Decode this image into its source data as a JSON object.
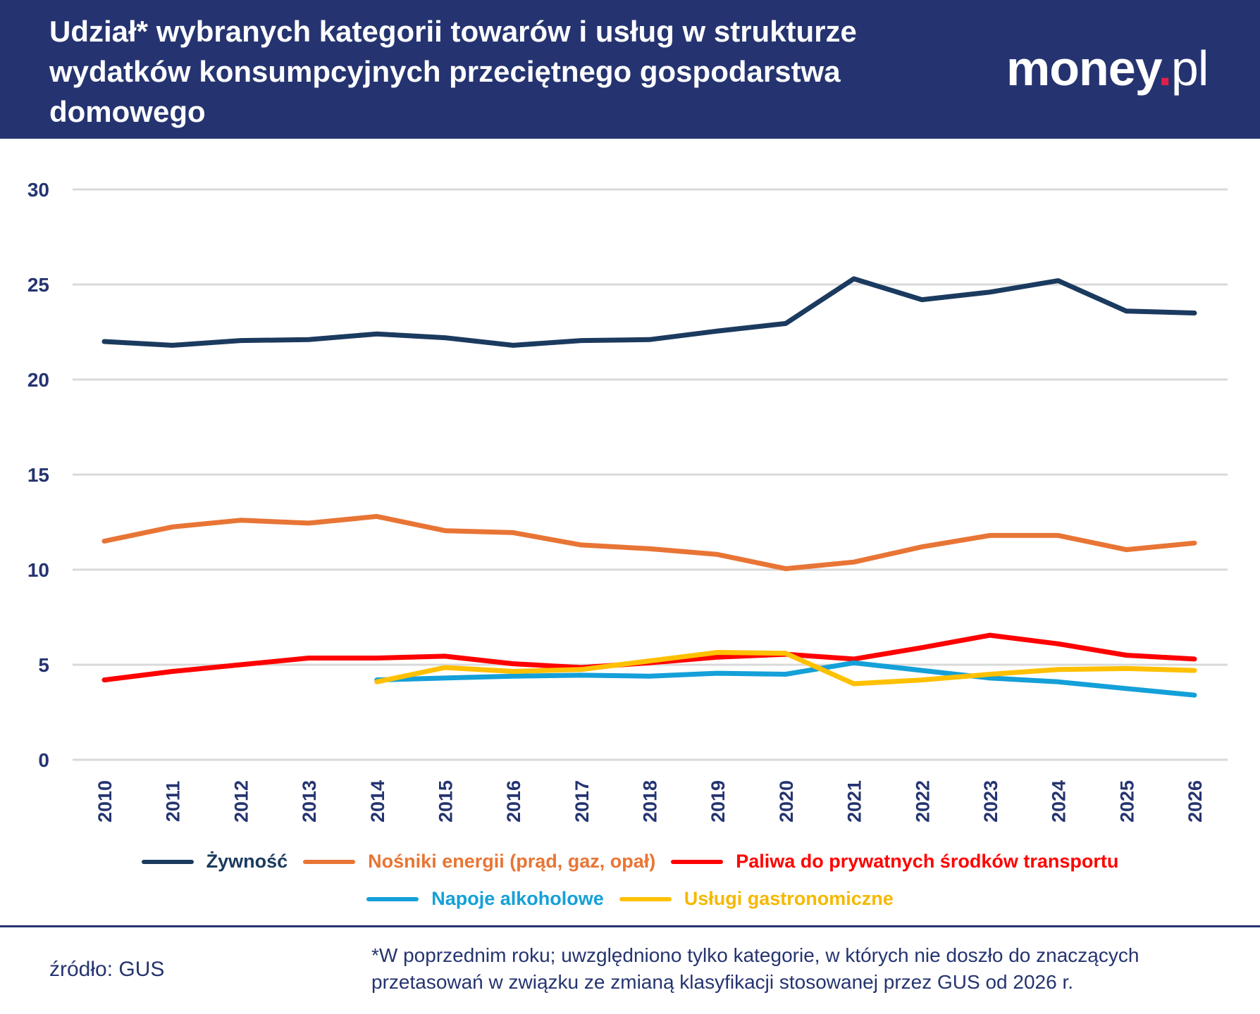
{
  "header": {
    "title": "Udział* wybranych kategorii towarów i usług w strukturze wydatków konsumpcyjnych przeciętnego gospodarstwa domowego",
    "logo": {
      "main": "money",
      "dot": ".",
      "suffix": "pl"
    }
  },
  "chart_data": {
    "type": "line",
    "title": "Udział* wybranych kategorii towarów i usług w strukturze wydatków konsumpcyjnych przeciętnego gospodarstwa domowego",
    "xlabel": "",
    "ylabel": "",
    "ylim": [
      0,
      30
    ],
    "yticks": [
      "0",
      "5",
      "10",
      "15",
      "20",
      "25",
      "30"
    ],
    "grid": true,
    "legend_position": "bottom",
    "x": [
      "2010",
      "2011",
      "2012",
      "2013",
      "2014",
      "2015",
      "2016",
      "2017",
      "2018",
      "2019",
      "2020",
      "2021",
      "2022",
      "2023",
      "2024",
      "2025",
      "2026"
    ],
    "series": [
      {
        "name": "Żywność",
        "color": "#1b3a5f",
        "values": [
          22.0,
          21.8,
          22.05,
          22.1,
          22.4,
          22.2,
          21.8,
          22.05,
          22.1,
          22.55,
          22.95,
          25.3,
          24.2,
          24.6,
          25.2,
          23.6,
          23.5
        ]
      },
      {
        "name": "Nośniki energii (prąd, gaz, opał)",
        "color": "#e87535",
        "values": [
          11.5,
          12.25,
          12.6,
          12.45,
          12.8,
          12.05,
          11.95,
          11.3,
          11.1,
          10.8,
          10.05,
          10.4,
          11.2,
          11.8,
          11.8,
          11.05,
          11.4
        ]
      },
      {
        "name": "Paliwa do prywatnych środków transportu",
        "color": "#ff0000",
        "values": [
          4.2,
          4.65,
          5.0,
          5.35,
          5.35,
          5.45,
          5.05,
          4.85,
          5.1,
          5.4,
          5.55,
          5.3,
          5.9,
          6.55,
          6.1,
          5.5,
          5.3
        ]
      },
      {
        "name": "Napoje alkoholowe",
        "color": "#14a0d8",
        "values": [
          null,
          null,
          null,
          null,
          4.2,
          4.3,
          4.4,
          4.45,
          4.4,
          4.55,
          4.5,
          5.1,
          4.7,
          4.3,
          4.1,
          3.75,
          3.4
        ]
      },
      {
        "name": "Usługi gastronomiczne",
        "color": "#ffc000",
        "values": [
          null,
          null,
          null,
          null,
          4.1,
          4.85,
          4.65,
          4.75,
          5.2,
          5.65,
          5.6,
          4.0,
          4.2,
          4.5,
          4.75,
          4.8,
          4.7
        ]
      }
    ]
  },
  "footer": {
    "source": "źródło: GUS",
    "note_line1": "*W poprzednim roku; uwzględniono tylko kategorie, w których nie doszło do znaczących",
    "note_line2": "przetasowań w związku ze zmianą klasyfikacji stosowanej przez GUS od 2026 r."
  }
}
